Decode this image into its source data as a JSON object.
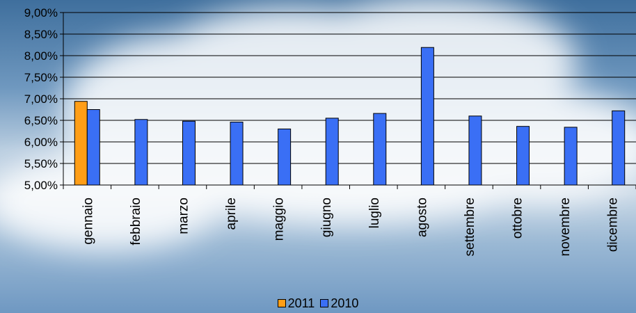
{
  "chart_data": {
    "type": "bar",
    "categories": [
      "gennaio",
      "febbraio",
      "marzo",
      "aprile",
      "maggio",
      "giugno",
      "luglio",
      "agosto",
      "settembre",
      "ottobre",
      "novembre",
      "dicembre"
    ],
    "series": [
      {
        "name": "2011",
        "color": "#ff9e17",
        "values": [
          6.94,
          null,
          null,
          null,
          null,
          null,
          null,
          null,
          null,
          null,
          null,
          null
        ]
      },
      {
        "name": "2010",
        "color": "#3a6ff5",
        "values": [
          6.75,
          6.52,
          6.48,
          6.46,
          6.3,
          6.55,
          6.66,
          8.19,
          6.6,
          6.36,
          6.34,
          6.72
        ]
      }
    ],
    "ylim": [
      5.0,
      9.0
    ],
    "yticks": [
      5.0,
      5.5,
      6.0,
      6.5,
      7.0,
      7.5,
      8.0,
      8.5,
      9.0
    ],
    "ytick_labels": [
      "5,00%",
      "5,50%",
      "6,00%",
      "6,50%",
      "7,00%",
      "7,50%",
      "8,00%",
      "8,50%",
      "9,00%"
    ],
    "grid": true,
    "legend_position": "bottom"
  }
}
